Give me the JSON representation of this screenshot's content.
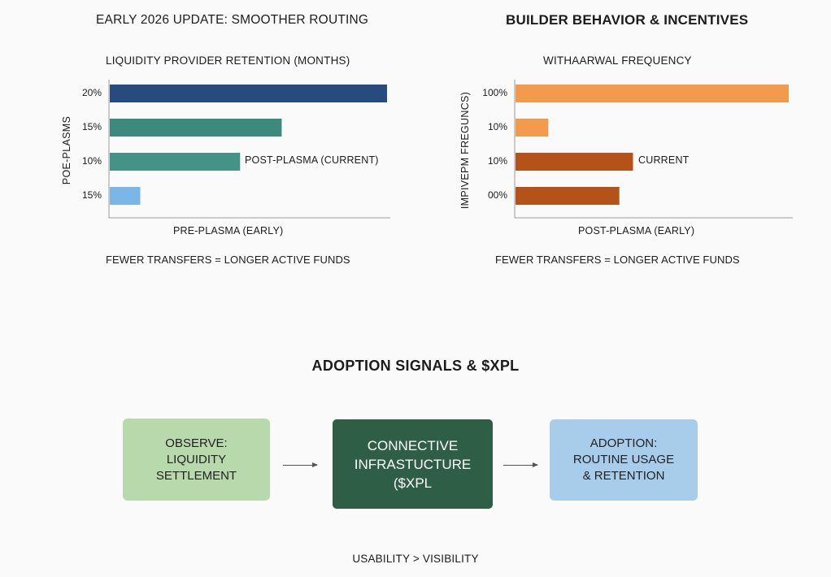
{
  "header": {
    "left_title": "EARLY 2026 UPDATE: SMOOTHER ROUTING",
    "right_title": "BUILDER BEHAVIOR & INCENTIVES"
  },
  "chart_data": [
    {
      "type": "bar",
      "orientation": "horizontal",
      "title": "LIQUIDITY PROVIDER RETENTION (MONTHS)",
      "ylabel": "POE-PLASMS",
      "xlabel": "PRE-PLASMA (EARLY)",
      "categories": [
        "20%",
        "15%",
        "10%",
        "15%"
      ],
      "values": [
        100,
        62,
        47,
        11
      ],
      "xlim": [
        0,
        100
      ],
      "colors": [
        "#274b7e",
        "#3d8a7c",
        "#449386",
        "#7ab7e6"
      ],
      "annotations": [
        {
          "category_index": 2,
          "text": "POST-PLASMA (CURRENT)"
        }
      ],
      "footnote": "FEWER TRANSFERS = LONGER ACTIVE FUNDS"
    },
    {
      "type": "bar",
      "orientation": "horizontal",
      "title": "WITHAARWAL FREQUENCY",
      "ylabel": "IMPIVEPM FREGUNCS)",
      "xlabel": "POST-PLASMA (EARLY)",
      "categories": [
        "100%",
        "10%",
        "10%",
        "00%"
      ],
      "values": [
        100,
        12,
        43,
        38
      ],
      "xlim": [
        0,
        100
      ],
      "colors": [
        "#f29b4c",
        "#f29b4c",
        "#b5521a",
        "#b5521a"
      ],
      "annotations": [
        {
          "category_index": 2,
          "text": "CURRENT"
        }
      ],
      "footnote": "FEWER TRANSFERS = LONGER ACTIVE FUNDS"
    }
  ],
  "flow": {
    "title": "ADOPTION SIGNALS & $XPL",
    "steps": [
      {
        "label": "OBSERVE:\nLIQUIDITY\nSETTLEMENT",
        "color": "#b7d9ab"
      },
      {
        "label": "CONNECTIVE\nINFRASTUCTURE\n($XPL",
        "color": "#2f5e46"
      },
      {
        "label": "ADOPTION:\nROUTINE USAGE\n& RETENTION",
        "color": "#a7cdea"
      }
    ],
    "note": "USABILITY > VISIBILITY"
  }
}
